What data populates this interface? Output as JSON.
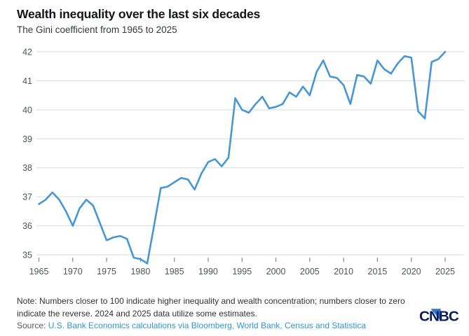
{
  "header": {
    "title": "Wealth inequality over the last six decades",
    "subtitle": "The Gini coefficient from 1965 to 2025"
  },
  "chart_data": {
    "type": "line",
    "title": "Wealth inequality over the last six decades",
    "subtitle": "The Gini coefficient from 1965 to 2025",
    "series_name": "Gini coefficient",
    "x": [
      1965,
      1966,
      1967,
      1968,
      1969,
      1970,
      1971,
      1972,
      1973,
      1974,
      1975,
      1976,
      1977,
      1978,
      1979,
      1980,
      1981,
      1982,
      1983,
      1984,
      1985,
      1986,
      1987,
      1988,
      1989,
      1990,
      1991,
      1992,
      1993,
      1994,
      1995,
      1996,
      1997,
      1998,
      1999,
      2000,
      2001,
      2002,
      2003,
      2004,
      2005,
      2006,
      2007,
      2008,
      2009,
      2010,
      2011,
      2012,
      2013,
      2014,
      2015,
      2016,
      2017,
      2018,
      2019,
      2020,
      2021,
      2022,
      2023,
      2024,
      2025
    ],
    "values": [
      36.75,
      36.9,
      37.15,
      36.9,
      36.5,
      36.0,
      36.6,
      36.9,
      36.7,
      36.1,
      35.5,
      35.6,
      35.65,
      35.55,
      34.9,
      34.85,
      34.7,
      36.0,
      37.3,
      37.35,
      37.5,
      37.65,
      37.6,
      37.25,
      37.8,
      38.2,
      38.3,
      38.05,
      38.35,
      40.4,
      40.0,
      39.9,
      40.2,
      40.45,
      40.05,
      40.1,
      40.2,
      40.6,
      40.45,
      40.8,
      40.5,
      41.3,
      41.7,
      41.15,
      41.1,
      40.85,
      40.2,
      41.2,
      41.15,
      40.9,
      41.7,
      41.4,
      41.25,
      41.6,
      41.85,
      41.8,
      39.95,
      39.7,
      41.65,
      41.75,
      42.0
    ],
    "xlabel": "",
    "ylabel": "",
    "xlim": [
      1965,
      2025
    ],
    "ylim": [
      34.6,
      42.15
    ],
    "yticks": [
      35,
      36,
      37,
      38,
      39,
      40,
      41,
      42
    ],
    "xticks": [
      1965,
      1970,
      1975,
      1980,
      1985,
      1990,
      1995,
      2000,
      2005,
      2010,
      2015,
      2020,
      2025
    ],
    "grid": "horizontal",
    "legend": "none",
    "line_color": "#4796d6"
  },
  "footer": {
    "note": "Note: Numbers closer to 100 indicate higher inequality and wealth concentration; numbers closer to zero indicate the reverse. 2024 and 2025 data utilize some estimates.",
    "source_prefix": "Source: ",
    "source_text": "U.S. Bank Economics calculations via Bloomberg, World Bank, Census and Statistica",
    "logo_text": "CNBC"
  },
  "colors": {
    "line": "#4796d6",
    "grid": "#d8dadc",
    "axis_label": "#4f545b",
    "tick_mark": "#83888f",
    "title": "#131519",
    "subtitle": "#34383e",
    "note": "#2e3237",
    "source": "#555a61",
    "link": "#2c99d5",
    "logo_navy": "#0a1e5a",
    "logo_blue": "#3077d8"
  }
}
